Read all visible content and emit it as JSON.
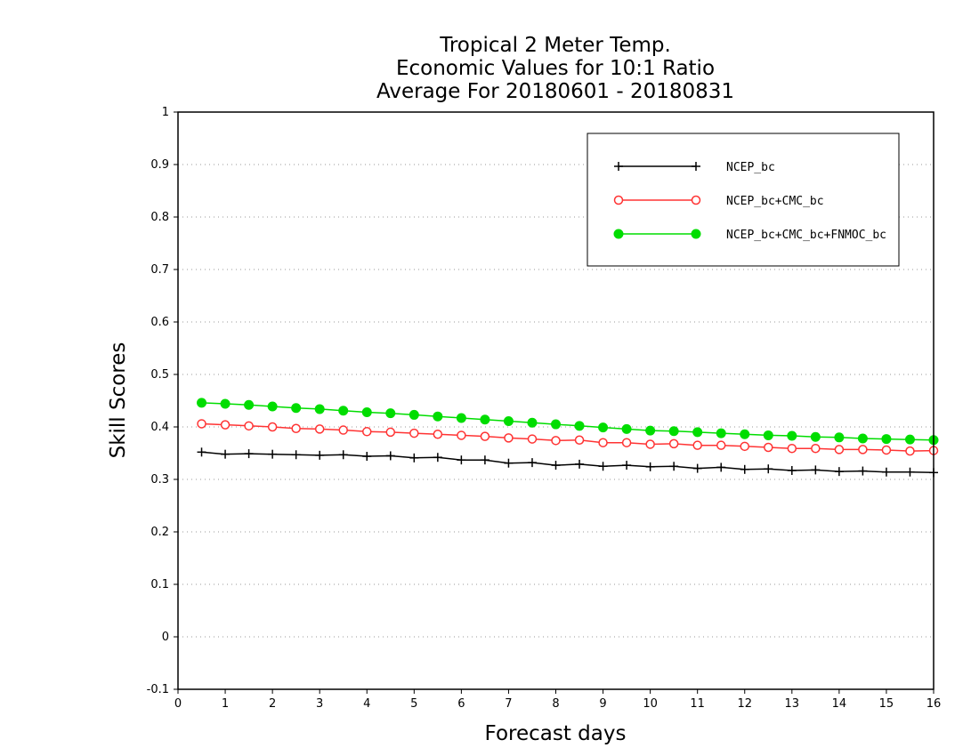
{
  "chart_data": {
    "type": "line",
    "title_lines": [
      "Tropical 2 Meter Temp.",
      "Economic Values for 10:1 Ratio",
      "Average For 20180601 - 20180831"
    ],
    "xlabel": "Forecast days",
    "ylabel": "Skill Scores",
    "xlim": [
      0,
      16
    ],
    "ylim": [
      -0.1,
      1
    ],
    "x_ticks": [
      0,
      1,
      2,
      3,
      4,
      5,
      6,
      7,
      8,
      9,
      10,
      11,
      12,
      13,
      14,
      15,
      16
    ],
    "y_ticks": [
      -0.1,
      0,
      0.1,
      0.2,
      0.3,
      0.4,
      0.5,
      0.6,
      0.7,
      0.8,
      0.9,
      1
    ],
    "y_tick_labels": [
      "-0.1",
      "0",
      "0.1",
      "0.2",
      "0.3",
      "0.4",
      "0.5",
      "0.6",
      "0.7",
      "0.8",
      "0.9",
      "1"
    ],
    "grid": "horizontal dotted",
    "legend_position": "top-right",
    "x": [
      0.5,
      1,
      1.5,
      2,
      2.5,
      3,
      3.5,
      4,
      4.5,
      5,
      5.5,
      6,
      6.5,
      7,
      7.5,
      8,
      8.5,
      9,
      9.5,
      10,
      10.5,
      11,
      11.5,
      12,
      12.5,
      13,
      13.5,
      14,
      14.5,
      15,
      15.5,
      16
    ],
    "series": [
      {
        "name": "NCEP_bc",
        "color": "#000000",
        "marker": "plus",
        "values": [
          0.352,
          0.348,
          0.349,
          0.348,
          0.347,
          0.346,
          0.347,
          0.344,
          0.345,
          0.341,
          0.342,
          0.337,
          0.337,
          0.331,
          0.332,
          0.327,
          0.329,
          0.325,
          0.327,
          0.324,
          0.325,
          0.321,
          0.323,
          0.319,
          0.32,
          0.317,
          0.318,
          0.315,
          0.316,
          0.314,
          0.314,
          0.313
        ]
      },
      {
        "name": "NCEP_bc+CMC_bc",
        "color": "#ff3333",
        "marker": "open-circle",
        "values": [
          0.406,
          0.404,
          0.402,
          0.4,
          0.397,
          0.396,
          0.394,
          0.391,
          0.39,
          0.388,
          0.386,
          0.384,
          0.382,
          0.379,
          0.377,
          0.374,
          0.375,
          0.37,
          0.37,
          0.367,
          0.368,
          0.365,
          0.365,
          0.363,
          0.361,
          0.359,
          0.359,
          0.357,
          0.357,
          0.356,
          0.354,
          0.355
        ]
      },
      {
        "name": "NCEP_bc+CMC_bc+FNMOC_bc",
        "color": "#00dd00",
        "marker": "filled-circle",
        "values": [
          0.446,
          0.444,
          0.442,
          0.439,
          0.436,
          0.434,
          0.431,
          0.428,
          0.426,
          0.423,
          0.42,
          0.417,
          0.414,
          0.411,
          0.408,
          0.405,
          0.402,
          0.399,
          0.396,
          0.393,
          0.392,
          0.39,
          0.388,
          0.386,
          0.384,
          0.383,
          0.381,
          0.38,
          0.378,
          0.377,
          0.376,
          0.375
        ]
      }
    ]
  }
}
